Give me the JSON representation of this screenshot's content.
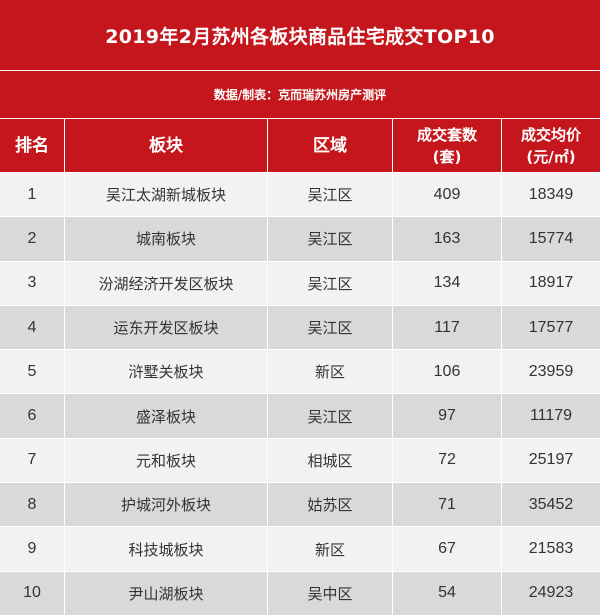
{
  "title": "2019年2月苏州各板块商品住宅成交TOP10",
  "source": "数据/制表：克而瑞苏州房产测评",
  "colors": {
    "header_red": "#c4161c",
    "row_light": "#f2f2f2",
    "row_dark": "#d9d9d9"
  },
  "header": {
    "rank": "排名",
    "block": "板块",
    "district": "区域",
    "deals_line1": "成交套数",
    "deals_line2": "(套)",
    "price_line1": "成交均价",
    "price_line2": "(元/㎡)"
  },
  "rows": [
    {
      "rank": "1",
      "block": "吴江太湖新城板块",
      "district": "吴江区",
      "deals": "409",
      "price": "18349"
    },
    {
      "rank": "2",
      "block": "城南板块",
      "district": "吴江区",
      "deals": "163",
      "price": "15774"
    },
    {
      "rank": "3",
      "block": "汾湖经济开发区板块",
      "district": "吴江区",
      "deals": "134",
      "price": "18917"
    },
    {
      "rank": "4",
      "block": "运东开发区板块",
      "district": "吴江区",
      "deals": "117",
      "price": "17577"
    },
    {
      "rank": "5",
      "block": "浒墅关板块",
      "district": "新区",
      "deals": "106",
      "price": "23959"
    },
    {
      "rank": "6",
      "block": "盛泽板块",
      "district": "吴江区",
      "deals": "97",
      "price": "11179"
    },
    {
      "rank": "7",
      "block": "元和板块",
      "district": "相城区",
      "deals": "72",
      "price": "25197"
    },
    {
      "rank": "8",
      "block": "护城河外板块",
      "district": "姑苏区",
      "deals": "71",
      "price": "35452"
    },
    {
      "rank": "9",
      "block": "科技城板块",
      "district": "新区",
      "deals": "67",
      "price": "21583"
    },
    {
      "rank": "10",
      "block": "尹山湖板块",
      "district": "吴中区",
      "deals": "54",
      "price": "24923"
    }
  ]
}
